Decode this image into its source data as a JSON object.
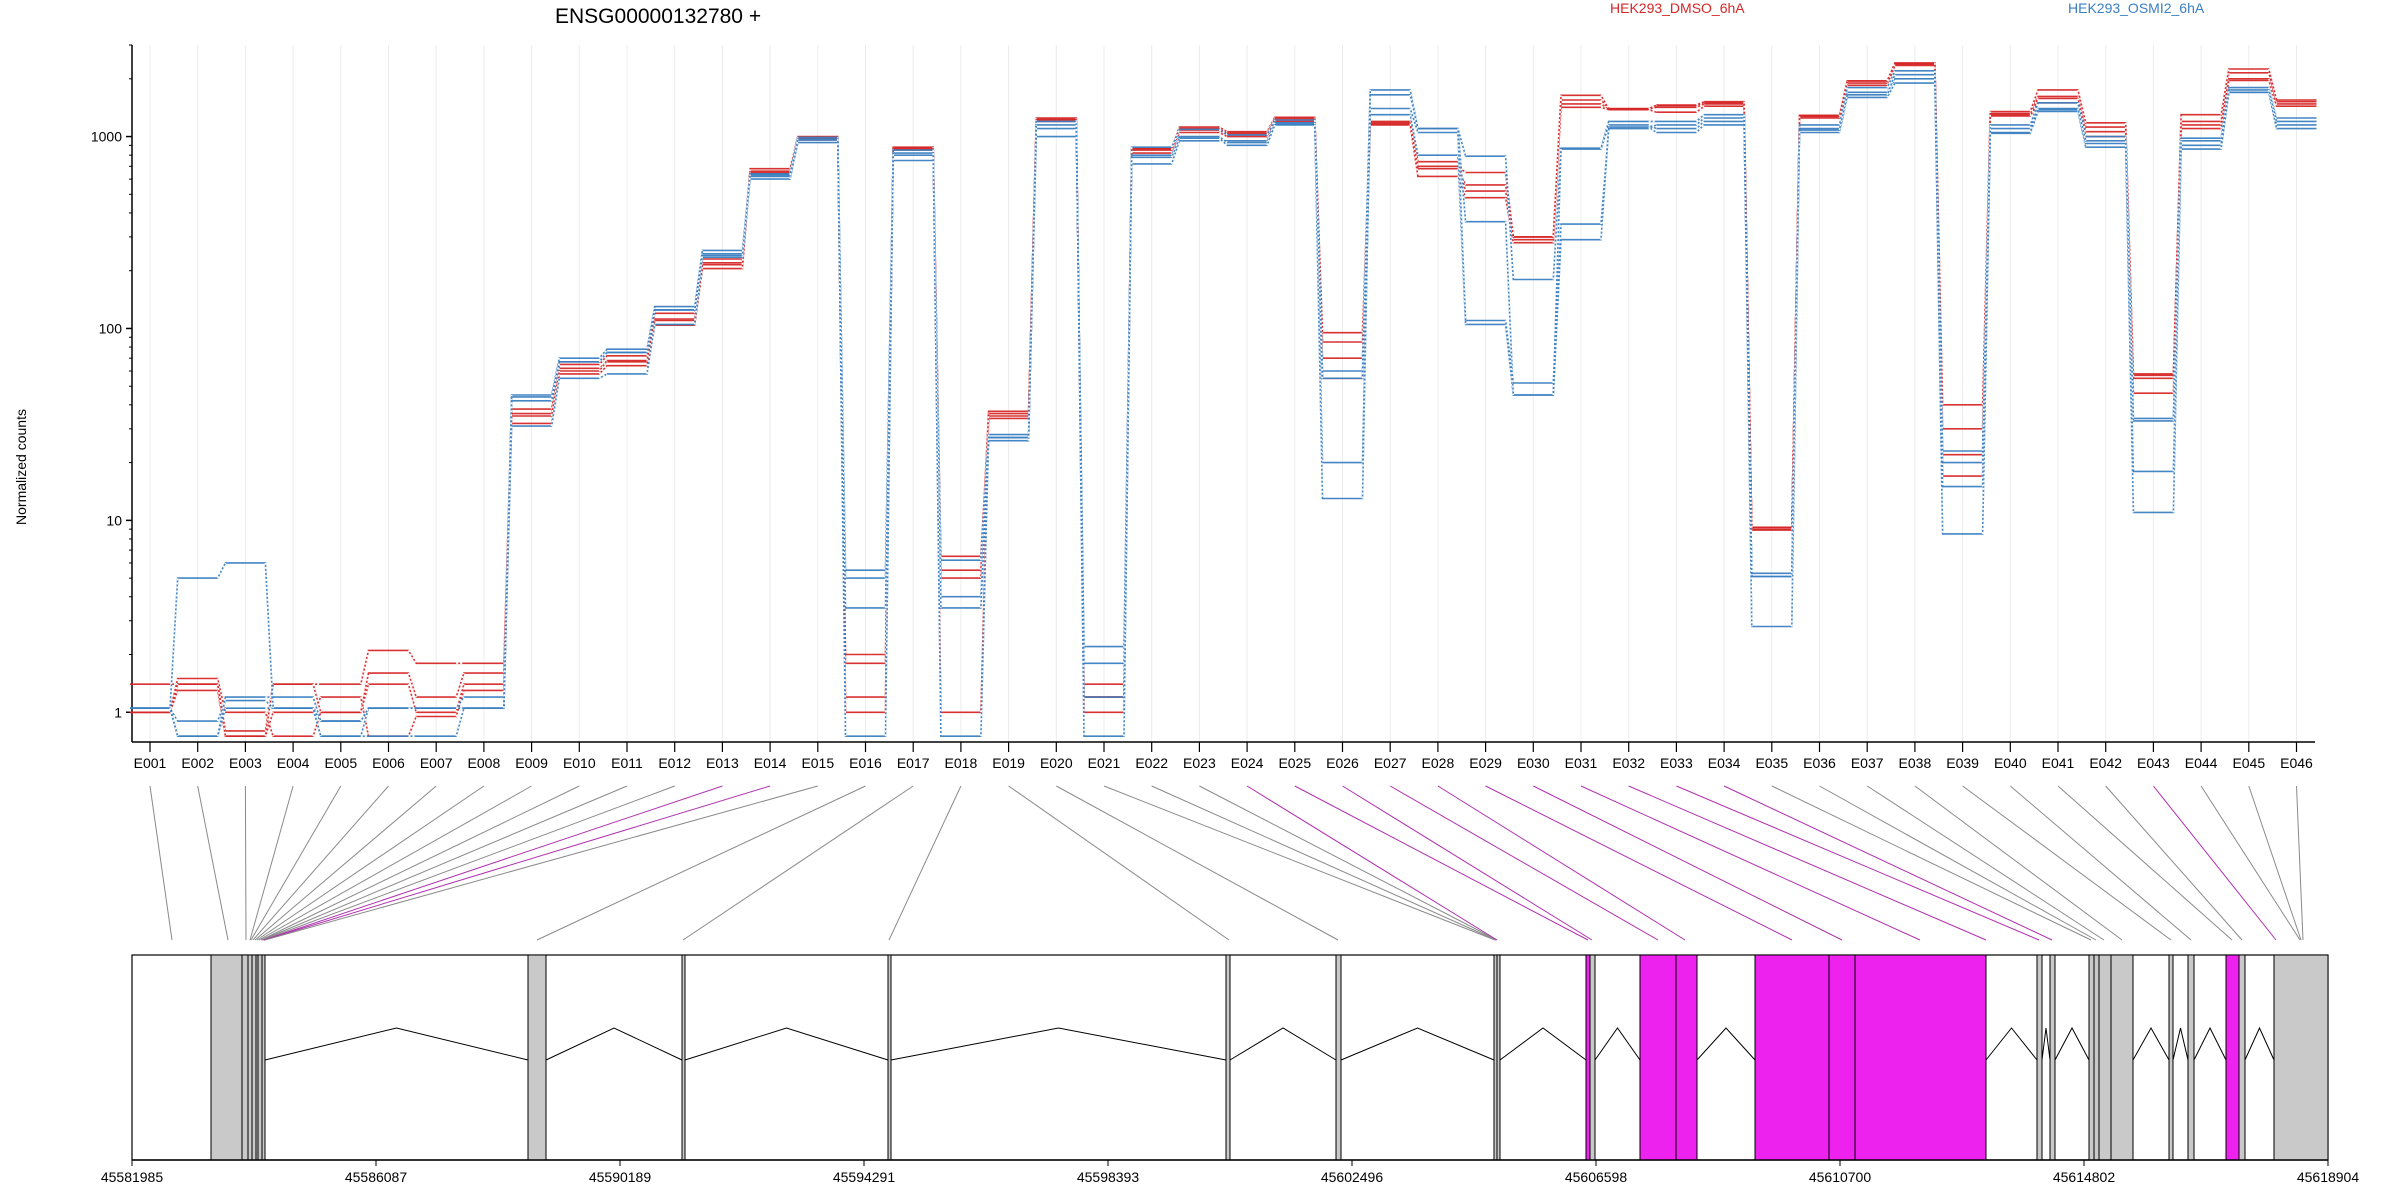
{
  "chart_data": {
    "type": "line",
    "title": "ENSG00000132780 +",
    "ylabel": "Normalized counts",
    "yscale": "log",
    "ylim": [
      0.7,
      3000
    ],
    "yticks": [
      1,
      10,
      100,
      1000
    ],
    "ytick_labels": [
      "1",
      "10",
      "100",
      "1000"
    ],
    "categories": [
      "E001",
      "E002",
      "E003",
      "E004",
      "E005",
      "E006",
      "E007",
      "E008",
      "E009",
      "E010",
      "E011",
      "E012",
      "E013",
      "E014",
      "E015",
      "E016",
      "E017",
      "E018",
      "E019",
      "E020",
      "E021",
      "E022",
      "E023",
      "E024",
      "E025",
      "E026",
      "E027",
      "E028",
      "E029",
      "E030",
      "E031",
      "E032",
      "E033",
      "E034",
      "E035",
      "E036",
      "E037",
      "E038",
      "E039",
      "E040",
      "E041",
      "E042",
      "E043",
      "E044",
      "E045",
      "E046"
    ],
    "legend": [
      {
        "name": "HEK293_DMSO_6hA",
        "color": "#d62728"
      },
      {
        "name": "HEK293_OSMI2_6hA",
        "color": "#3a7fc1"
      }
    ],
    "series": [
      {
        "group": "HEK293_DMSO_6hA",
        "values": [
          1.4,
          1.4,
          0.8,
          1.4,
          1.4,
          2.1,
          1.8,
          1.8,
          38,
          62,
          67,
          112,
          220,
          660,
          980,
          1.2,
          870,
          5.5,
          37,
          1250,
          1.2,
          870,
          1120,
          1060,
          1260,
          85,
          1200,
          680,
          560,
          300,
          1550,
          1400,
          1450,
          1500,
          9.2,
          1290,
          1950,
          2400,
          17,
          1320,
          1620,
          1120,
          57,
          1200,
          2150,
          1520
        ]
      },
      {
        "group": "HEK293_DMSO_6hA",
        "values": [
          1.0,
          1.5,
          1.0,
          0.75,
          1.0,
          1.6,
          1.2,
          1.6,
          36,
          65,
          72,
          120,
          230,
          680,
          1000,
          1.8,
          880,
          6.5,
          35,
          1230,
          1.4,
          860,
          1100,
          1040,
          1240,
          70,
          1180,
          740,
          520,
          290,
          1480,
          1390,
          1420,
          1480,
          9.0,
          1280,
          1900,
          2380,
          22,
          1300,
          1580,
          1060,
          46,
          1150,
          2000,
          1480
        ]
      },
      {
        "group": "HEK293_DMSO_6hA",
        "values": [
          1.0,
          1.3,
          0.75,
          1.0,
          1.2,
          0.75,
          0.95,
          1.3,
          32,
          58,
          64,
          104,
          205,
          640,
          960,
          1.0,
          850,
          1.0,
          34,
          1200,
          1.0,
          820,
          1050,
          1000,
          1200,
          55,
          1150,
          620,
          480,
          280,
          1420,
          1380,
          1340,
          1440,
          9.2,
          1250,
          1850,
          2350,
          30,
          1280,
          1500,
          1000,
          58,
          1100,
          1960,
          1440
        ]
      },
      {
        "group": "HEK293_DMSO_6hA",
        "values": [
          1.0,
          1.4,
          0.75,
          1.4,
          1.0,
          1.4,
          1.0,
          1.4,
          35,
          60,
          68,
          110,
          215,
          650,
          970,
          2.0,
          860,
          5.0,
          36,
          1220,
          1.2,
          850,
          1080,
          1020,
          1220,
          95,
          1160,
          700,
          650,
          300,
          1640,
          1390,
          1460,
          1520,
          8.9,
          1270,
          1950,
          2420,
          40,
          1350,
          1750,
          1180,
          55,
          1300,
          2250,
          1550
        ]
      },
      {
        "group": "HEK293_OSMI2_6hA",
        "values": [
          1.05,
          0.9,
          1.15,
          1.05,
          0.75,
          1.05,
          1.05,
          1.05,
          45,
          70,
          78,
          130,
          255,
          640,
          990,
          5.0,
          850,
          4.0,
          26,
          1200,
          1.2,
          880,
          1090,
          1020,
          1220,
          60,
          1750,
          1100,
          790,
          180,
          870,
          1200,
          1200,
          1300,
          5.1,
          1150,
          1800,
          2200,
          23,
          1150,
          1500,
          1000,
          33,
          980,
          1800,
          1250
        ]
      },
      {
        "group": "HEK293_OSMI2_6hA",
        "values": [
          1.05,
          0.75,
          1.05,
          1.05,
          0.75,
          0.75,
          0.75,
          1.05,
          31,
          55,
          58,
          105,
          235,
          600,
          930,
          5.5,
          750,
          6.2,
          28,
          1000,
          2.2,
          720,
          950,
          950,
          1160,
          20,
          1300,
          800,
          105,
          45,
          290,
          1120,
          1050,
          1150,
          5.1,
          1100,
          1700,
          2000,
          8.5,
          1040,
          1350,
          880,
          11,
          860,
          1700,
          1100
        ]
      },
      {
        "group": "HEK293_OSMI2_6hA",
        "values": [
          1.05,
          5.0,
          6.0,
          1.05,
          0.9,
          1.05,
          1.05,
          1.2,
          44,
          67,
          75,
          125,
          245,
          620,
          960,
          3.5,
          800,
          3.5,
          27,
          1100,
          1.8,
          800,
          1000,
          930,
          1180,
          13,
          1650,
          1100,
          360,
          45,
          860,
          1150,
          1100,
          1200,
          2.8,
          1050,
          1600,
          1900,
          15,
          1050,
          1380,
          920,
          18,
          900,
          1700,
          1150
        ]
      },
      {
        "group": "HEK293_OSMI2_6hA",
        "values": [
          1.05,
          0.75,
          1.2,
          1.2,
          0.9,
          1.05,
          1.05,
          1.05,
          42,
          67,
          75,
          125,
          240,
          630,
          970,
          0.75,
          820,
          0.75,
          27,
          1150,
          0.75,
          780,
          980,
          900,
          1150,
          55,
          1400,
          1050,
          110,
          52,
          350,
          1100,
          1150,
          1250,
          5.3,
          1080,
          1650,
          2100,
          20,
          1100,
          1400,
          950,
          34,
          950,
          1750,
          1200
        ]
      }
    ],
    "genomic_axis": {
      "tick_labels": [
        "45581985",
        "45586087",
        "45590189",
        "45594291",
        "45598393",
        "45602496",
        "45606598",
        "45610700",
        "45614802",
        "45618904"
      ]
    }
  },
  "colors": {
    "dmso": "#d62728",
    "osmi": "#3a7fc1",
    "exon_fill": "#c9c9c9",
    "highlight_fill": "#ee22ee",
    "highlight_line": "#b030b0",
    "connector": "#8a8a8a"
  }
}
